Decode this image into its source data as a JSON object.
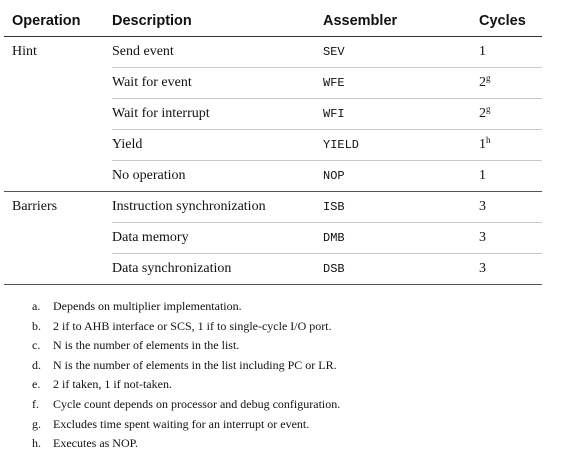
{
  "table": {
    "headers": {
      "operation": "Operation",
      "description": "Description",
      "assembler": "Assembler",
      "cycles": "Cycles"
    },
    "rows": [
      {
        "operation": "Hint",
        "description": "Send event",
        "assembler": "SEV",
        "cycles": "1",
        "note": ""
      },
      {
        "operation": "",
        "description": "Wait for event",
        "assembler": "WFE",
        "cycles": "2",
        "note": "g"
      },
      {
        "operation": "",
        "description": "Wait for interrupt",
        "assembler": "WFI",
        "cycles": "2",
        "note": "g"
      },
      {
        "operation": "",
        "description": "Yield",
        "assembler": "YIELD",
        "cycles": "1",
        "note": "h"
      },
      {
        "operation": "",
        "description": "No operation",
        "assembler": "NOP",
        "cycles": "1",
        "note": ""
      },
      {
        "operation": "Barriers",
        "description": "Instruction synchronization",
        "assembler": "ISB",
        "cycles": "3",
        "note": ""
      },
      {
        "operation": "",
        "description": "Data memory",
        "assembler": "DMB",
        "cycles": "3",
        "note": ""
      },
      {
        "operation": "",
        "description": "Data synchronization",
        "assembler": "DSB",
        "cycles": "3",
        "note": ""
      }
    ]
  },
  "footnotes": [
    {
      "marker": "a.",
      "text": "Depends on multiplier implementation."
    },
    {
      "marker": "b.",
      "text": "2 if to AHB interface or SCS, 1 if to single-cycle I/O port."
    },
    {
      "marker": "c.",
      "text": "N is the number of elements in the list."
    },
    {
      "marker": "d.",
      "text": "N is the number of elements in the list including PC or LR."
    },
    {
      "marker": "e.",
      "text": "2 if taken, 1 if not-taken."
    },
    {
      "marker": "f.",
      "text": "Cycle count depends on processor and debug configuration."
    },
    {
      "marker": "g.",
      "text": "Excludes time spent waiting for an interrupt or event."
    },
    {
      "marker": "h.",
      "text": "Executes as NOP."
    }
  ]
}
